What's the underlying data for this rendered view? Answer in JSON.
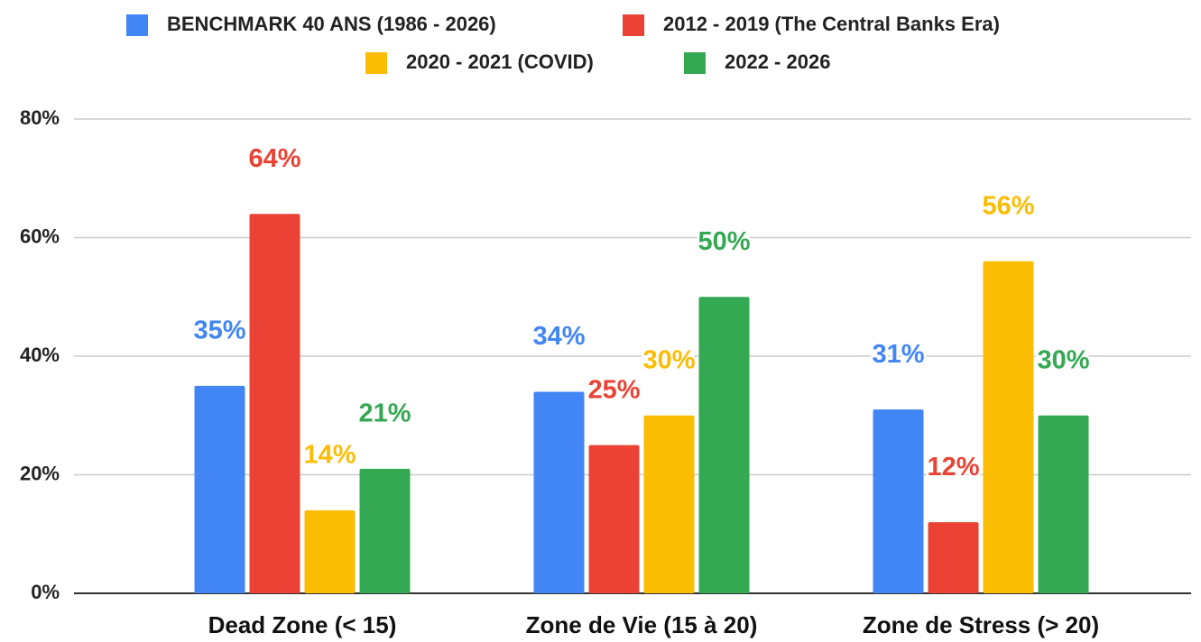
{
  "chart_data": {
    "type": "bar",
    "categories": [
      "Dead Zone (< 15)",
      "Zone de Vie (15 à 20)",
      "Zone de Stress (> 20)"
    ],
    "series": [
      {
        "name": "BENCHMARK 40 ANS (1986 - 2026)",
        "color": "#4285f4",
        "values": [
          35,
          34,
          31
        ],
        "value_labels": [
          "35%",
          "34%",
          "31%"
        ]
      },
      {
        "name": "2012 - 2019 (The Central Banks Era)",
        "color": "#ea4335",
        "values": [
          64,
          25,
          12
        ],
        "value_labels": [
          "64%",
          "25%",
          "12%"
        ]
      },
      {
        "name": "2020 - 2021 (COVID)",
        "color": "#fbbc04",
        "values": [
          14,
          30,
          56
        ],
        "value_labels": [
          "14%",
          "30%",
          "56%"
        ]
      },
      {
        "name": "2022 - 2026",
        "color": "#34a853",
        "values": [
          21,
          50,
          30
        ],
        "value_labels": [
          "21%",
          "50%",
          "30%"
        ]
      }
    ],
    "ylim": [
      0,
      80
    ],
    "yticks": [
      {
        "value": 0,
        "label": "0%"
      },
      {
        "value": 20,
        "label": "20%"
      },
      {
        "value": 40,
        "label": "40%"
      },
      {
        "value": 60,
        "label": "60%"
      },
      {
        "value": 80,
        "label": "80%"
      }
    ],
    "grid": true,
    "legend": "top"
  }
}
